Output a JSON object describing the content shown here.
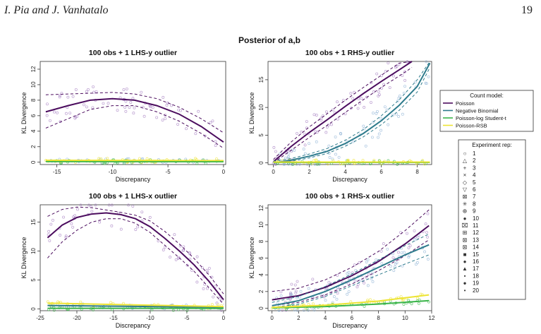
{
  "header": {
    "authors": "I. Pia and J. Vanhatalo",
    "page_number": "19"
  },
  "figure": {
    "title": "Posterior of a,b"
  },
  "colors": {
    "Poisson": "#4b0c5e",
    "Negative Binomial": "#2e7b8c",
    "Poisson-log Student-t": "#3bb54a",
    "Poisson-RSB": "#ede433",
    "Poisson_points": "#a67fc2",
    "Negative Binomial_points": "#8fb3d6"
  },
  "legend_models": {
    "title": "Count model:",
    "entries": [
      "Poisson",
      "Negative Binomial",
      "Poisson-log Student-t",
      "Poisson-RSB"
    ]
  },
  "legend_reps": {
    "title": "Experiment rep:",
    "labels": [
      "1",
      "2",
      "3",
      "4",
      "5",
      "6",
      "7",
      "8",
      "9",
      "10",
      "11",
      "12",
      "13",
      "14",
      "15",
      "16",
      "17",
      "18",
      "19",
      "20"
    ]
  },
  "chart_data": [
    {
      "type": "line",
      "title": "100 obs + 1 LHS-y outlier",
      "xlabel": "Discrepancy",
      "ylabel": "KL Divergence",
      "xlim": [
        -16.5,
        0.2
      ],
      "ylim": [
        -0.3,
        13
      ],
      "xticks": [
        -15,
        -10,
        -5,
        0
      ],
      "yticks": [
        0,
        2,
        4,
        6,
        8,
        10,
        12
      ],
      "series": [
        {
          "name": "Poisson",
          "x": [
            -16,
            -14,
            -12,
            -10,
            -8,
            -6,
            -4,
            -2,
            0
          ],
          "y": [
            6.5,
            7.3,
            8.0,
            8.2,
            8.0,
            7.3,
            6.2,
            4.6,
            2.6
          ],
          "upper": [
            8.7,
            8.8,
            8.9,
            9.0,
            8.8,
            8.2,
            7.1,
            5.6,
            3.8
          ],
          "lower": [
            4.4,
            5.6,
            6.8,
            7.3,
            7.3,
            6.5,
            5.3,
            3.7,
            1.8
          ]
        },
        {
          "name": "Negative Binomial",
          "x": [
            -16,
            0
          ],
          "y": [
            0.18,
            0.16
          ]
        },
        {
          "name": "Poisson-log Student-t",
          "x": [
            -16,
            0
          ],
          "y": [
            0.08,
            0.06
          ]
        },
        {
          "name": "Poisson-RSB",
          "x": [
            -16,
            0
          ],
          "y": [
            0.25,
            0.22
          ]
        }
      ]
    },
    {
      "type": "line",
      "title": "100 obs + 1 RHS-y outlier",
      "xlabel": "Discrepancy",
      "ylabel": "KL Divergence",
      "xlim": [
        -0.3,
        8.8
      ],
      "ylim": [
        -0.3,
        18.3
      ],
      "xticks": [
        0,
        2,
        4,
        6,
        8
      ],
      "yticks": [
        0,
        5,
        10,
        15
      ],
      "series": [
        {
          "name": "Poisson",
          "x": [
            0,
            1,
            2,
            3,
            4,
            5,
            6,
            7,
            7.7
          ],
          "y": [
            0.2,
            3.0,
            5.5,
            7.8,
            10.2,
            12.5,
            14.7,
            16.8,
            18.3
          ],
          "upper": [
            0.6,
            3.8,
            6.5,
            8.9,
            11.3,
            13.6,
            15.8,
            18,
            18.3
          ],
          "lower": [
            0,
            2.3,
            4.6,
            6.8,
            9.1,
            11.4,
            13.6,
            15.7,
            17.2
          ]
        },
        {
          "name": "Negative Binomial",
          "x": [
            0,
            1,
            2,
            3,
            4,
            5,
            6,
            7,
            8,
            8.7
          ],
          "y": [
            0,
            0.5,
            1.2,
            2.1,
            3.5,
            5.3,
            7.6,
            10.4,
            13.8,
            18.0
          ],
          "upper": [
            0.3,
            0.8,
            1.6,
            2.6,
            4.1,
            6.0,
            8.5,
            11.4,
            15.0,
            18.3
          ],
          "lower": [
            0,
            0.3,
            0.9,
            1.7,
            3.0,
            4.7,
            6.9,
            9.5,
            12.8,
            17.2
          ]
        },
        {
          "name": "Poisson-log Student-t",
          "x": [
            0,
            8.7
          ],
          "y": [
            0.08,
            0.08
          ]
        },
        {
          "name": "Poisson-RSB",
          "x": [
            0,
            8.7
          ],
          "y": [
            0.15,
            0.15
          ]
        }
      ]
    },
    {
      "type": "line",
      "title": "100 obs + 1 LHS-x outlier",
      "xlabel": "Discrepancy",
      "ylabel": "KL Divergence",
      "xlim": [
        -25,
        0.3
      ],
      "ylim": [
        -0.3,
        18
      ],
      "xticks": [
        -25,
        -20,
        -15,
        -10,
        -5,
        0
      ],
      "yticks": [
        0,
        5,
        10,
        15
      ],
      "series": [
        {
          "name": "Poisson",
          "x": [
            -24,
            -22,
            -20,
            -18,
            -16,
            -14,
            -12,
            -10,
            -8,
            -6,
            -4,
            -2,
            0
          ],
          "y": [
            12.3,
            14.5,
            15.8,
            16.4,
            16.6,
            16.3,
            15.6,
            14.2,
            12.2,
            10.0,
            7.6,
            4.8,
            1.6
          ],
          "upper": [
            16,
            17.2,
            17.6,
            17.5,
            17.1,
            16.7,
            16.2,
            15.2,
            13.4,
            11.2,
            8.7,
            5.9,
            2.6
          ],
          "lower": [
            8.8,
            11.6,
            13.6,
            15,
            15.6,
            15.6,
            14.8,
            13.2,
            11.0,
            8.8,
            6.5,
            3.7,
            0.8
          ]
        },
        {
          "name": "Negative Binomial",
          "x": [
            -24,
            0
          ],
          "y": [
            0.6,
            0.3
          ]
        },
        {
          "name": "Poisson-log Student-t",
          "x": [
            -24,
            0
          ],
          "y": [
            0.12,
            0.1
          ]
        },
        {
          "name": "Poisson-RSB",
          "x": [
            -24,
            0
          ],
          "y": [
            1.0,
            0.4
          ]
        }
      ]
    },
    {
      "type": "line",
      "title": "100 obs + 1 RHS-x outlier",
      "xlabel": "Discrepancy",
      "ylabel": "KL Divergence",
      "xlim": [
        -0.3,
        12
      ],
      "ylim": [
        -0.3,
        12.4
      ],
      "xticks": [
        0,
        2,
        4,
        6,
        8,
        10,
        12
      ],
      "yticks": [
        0,
        2,
        4,
        6,
        8,
        10,
        12
      ],
      "series": [
        {
          "name": "Poisson",
          "x": [
            0,
            2,
            4,
            6,
            8,
            10,
            11.8
          ],
          "y": [
            1.0,
            1.5,
            2.5,
            3.9,
            5.6,
            7.7,
            9.9
          ],
          "upper": [
            2.0,
            2.4,
            3.4,
            4.9,
            6.8,
            9.3,
            11.8
          ],
          "lower": [
            0.3,
            0.7,
            1.6,
            2.9,
            4.5,
            6.3,
            8.2
          ]
        },
        {
          "name": "Negative Binomial",
          "x": [
            0,
            2,
            4,
            6,
            8,
            10,
            11.8
          ],
          "y": [
            0.3,
            0.9,
            2.0,
            3.4,
            4.9,
            6.4,
            7.6
          ],
          "upper": [
            0.7,
            1.4,
            2.6,
            4.1,
            5.8,
            7.5,
            8.9
          ],
          "lower": [
            0.1,
            0.5,
            1.4,
            2.7,
            4.0,
            5.3,
            6.4
          ]
        },
        {
          "name": "Poisson-log Student-t",
          "x": [
            0,
            4,
            8,
            11.8
          ],
          "y": [
            0.05,
            0.2,
            0.5,
            0.9
          ]
        },
        {
          "name": "Poisson-RSB",
          "x": [
            0,
            4,
            8,
            11.8
          ],
          "y": [
            0.1,
            0.35,
            0.85,
            1.6
          ]
        }
      ]
    }
  ]
}
